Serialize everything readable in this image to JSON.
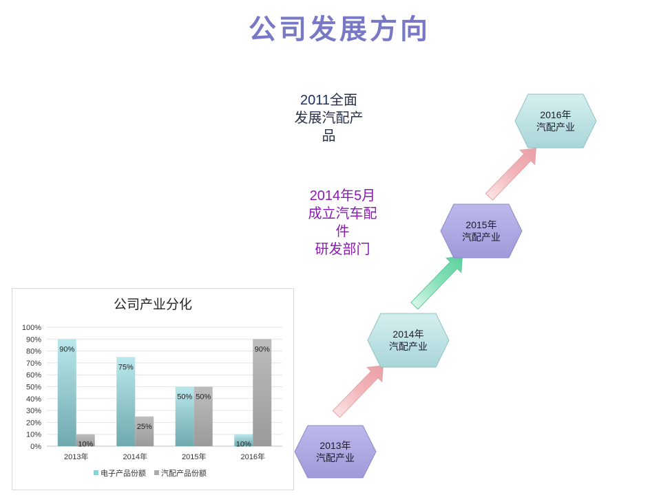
{
  "page": {
    "title": "公司发展方向"
  },
  "notes": {
    "note_2011": {
      "year": "2011",
      "line1_rest": "全面",
      "line2": "发展汽配产",
      "line3": "品"
    },
    "note_2014": {
      "line1": "2014年5月",
      "line2": "成立汽车配",
      "line3": "件",
      "line4": "研发部门"
    }
  },
  "timeline": [
    {
      "year": "2013年",
      "label": "汽配产业",
      "color": "#a7a2df"
    },
    {
      "year": "2014年",
      "label": "汽配产业",
      "color": "#b8dfe0"
    },
    {
      "year": "2015年",
      "label": "汽配产业",
      "color": "#a7a2df"
    },
    {
      "year": "2016年",
      "label": "汽配产业",
      "color": "#b8dfe0"
    }
  ],
  "arrows": [
    {
      "color": "#f2b6ba"
    },
    {
      "color": "#87e0b8"
    },
    {
      "color": "#f2b6ba"
    }
  ],
  "chart_data": {
    "type": "bar",
    "title": "公司产业分化",
    "categories": [
      "2013年",
      "2014年",
      "2015年",
      "2016年"
    ],
    "series": [
      {
        "name": "电子产品份额",
        "values": [
          90,
          75,
          50,
          10
        ],
        "color": "#8ecfd6"
      },
      {
        "name": "汽配产品份额",
        "values": [
          10,
          25,
          50,
          90
        ],
        "color": "#ababab"
      }
    ],
    "ylim": [
      0,
      100
    ],
    "ytick_step": 10,
    "unit": "%",
    "grid": true,
    "legend": "bottom",
    "data_labels": true
  }
}
